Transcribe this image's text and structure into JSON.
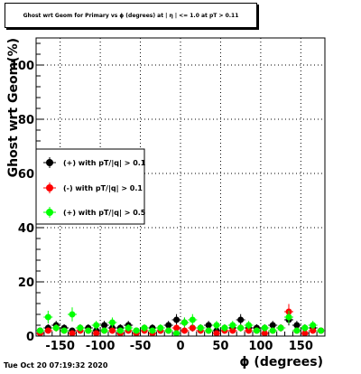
{
  "chart_data": {
    "type": "scatter",
    "title": "Ghost wrt Geom for Primary vs ϕ (degrees) at | η | <= 1.0 at pT > 0.11",
    "xlabel": "ϕ (degrees)",
    "ylabel": "Ghost wrt Geom(%)",
    "xlim": [
      -180,
      180
    ],
    "ylim": [
      0,
      110
    ],
    "x_ticks": [
      -150,
      -100,
      -50,
      0,
      50,
      100,
      150
    ],
    "y_ticks": [
      0,
      20,
      40,
      60,
      80,
      100
    ],
    "grid": true,
    "legend_position": "left",
    "series": [
      {
        "name": "(+) with pT/|q| > 0.1",
        "color": "#000000",
        "x": [
          -175,
          -165,
          -155,
          -145,
          -135,
          -125,
          -115,
          -105,
          -95,
          -85,
          -75,
          -65,
          -55,
          -45,
          -35,
          -25,
          -15,
          -5,
          5,
          15,
          25,
          35,
          45,
          55,
          65,
          75,
          85,
          95,
          105,
          115,
          125,
          135,
          145,
          155,
          165,
          175
        ],
        "y": [
          2,
          3,
          4,
          3,
          2,
          3,
          3,
          2,
          4,
          3,
          3,
          4,
          2,
          3,
          3,
          2,
          4,
          6,
          5,
          3,
          3,
          4,
          2,
          3,
          3,
          6,
          3,
          3,
          3,
          4,
          3,
          6,
          4,
          3,
          3,
          2
        ]
      },
      {
        "name": "(-) with pT/|q| > 0.1",
        "color": "#ff0000",
        "x": [
          -175,
          -165,
          -155,
          -145,
          -135,
          -125,
          -115,
          -105,
          -95,
          -85,
          -75,
          -65,
          -55,
          -45,
          -35,
          -25,
          -15,
          -5,
          5,
          15,
          25,
          35,
          45,
          55,
          65,
          75,
          85,
          95,
          105,
          115,
          125,
          135,
          145,
          155,
          165,
          175
        ],
        "y": [
          1,
          2,
          3,
          2,
          1,
          2,
          2,
          1,
          2,
          2,
          1,
          2,
          1,
          2,
          1,
          2,
          2,
          3,
          2,
          3,
          2,
          2,
          1,
          2,
          2,
          3,
          2,
          2,
          1,
          2,
          3,
          9,
          2,
          1,
          2,
          2
        ]
      },
      {
        "name": "(+) with pT/|q| > 0.5",
        "color": "#00ff00",
        "x": [
          -175,
          -165,
          -155,
          -145,
          -135,
          -125,
          -115,
          -105,
          -95,
          -85,
          -75,
          -65,
          -55,
          -45,
          -35,
          -25,
          -15,
          -5,
          5,
          15,
          25,
          35,
          45,
          55,
          65,
          75,
          85,
          95,
          105,
          115,
          125,
          135,
          145,
          155,
          165,
          175
        ],
        "y": [
          2,
          7,
          3,
          2,
          8,
          3,
          2,
          4,
          2,
          5,
          2,
          3,
          2,
          3,
          2,
          3,
          2,
          1,
          5,
          6,
          3,
          2,
          4,
          3,
          4,
          3,
          4,
          2,
          3,
          2,
          3,
          7,
          2,
          3,
          4,
          2
        ]
      }
    ]
  },
  "footer": {
    "timestamp": "Tue Oct 20 07:19:32 2020"
  },
  "colors": {
    "axis": "#000000",
    "grid": "#000000"
  }
}
